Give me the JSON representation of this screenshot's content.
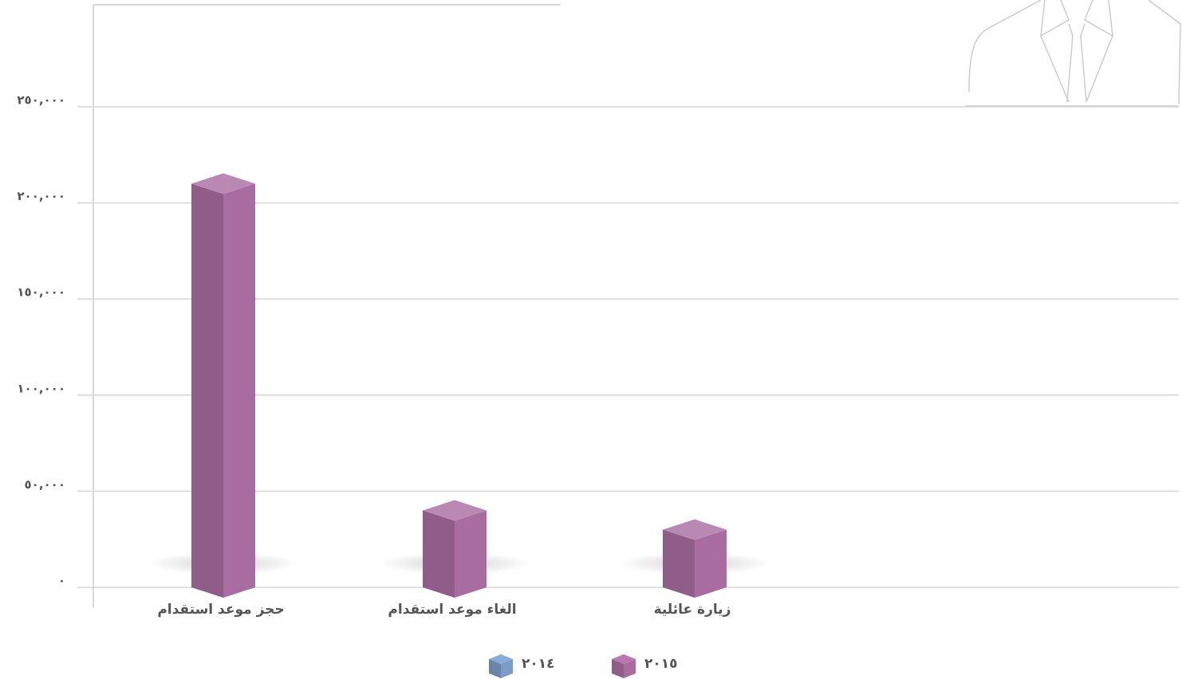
{
  "chart_data": {
    "type": "bar3d",
    "categories": [
      "حجز موعد استقدام",
      "الغاء موعد استقدام",
      "زيارة عائلية"
    ],
    "series": [
      {
        "name": "٢٠١٤",
        "color": "#7b9cc8",
        "values": [
          null,
          null,
          null
        ]
      },
      {
        "name": "٢٠١٥",
        "color": "#a96ca0",
        "values": [
          210000,
          40000,
          30000
        ]
      }
    ],
    "ylim": [
      0,
      250000
    ],
    "yticks": [
      {
        "value": 0,
        "label": "٠"
      },
      {
        "value": 50000,
        "label": "٥٠,٠٠٠"
      },
      {
        "value": 100000,
        "label": "١٠٠,٠٠٠"
      },
      {
        "value": 150000,
        "label": "١٥٠,٠٠٠"
      },
      {
        "value": 200000,
        "label": "٢٠٠,٠٠٠"
      },
      {
        "value": 250000,
        "label": "٢٥٠,٠٠٠"
      }
    ],
    "grid": true
  }
}
